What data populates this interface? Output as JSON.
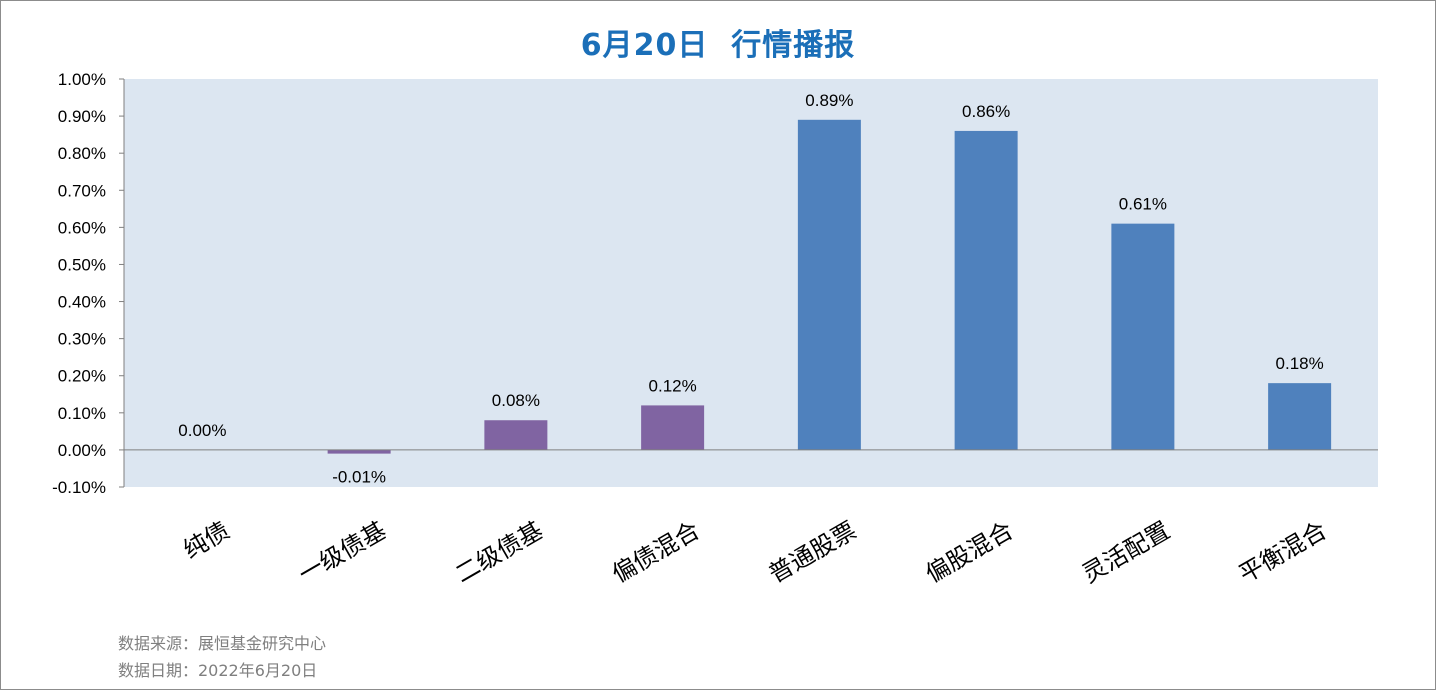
{
  "chart_data": {
    "type": "bar",
    "title": "6月20日  行情播报",
    "categories": [
      "纯债",
      "一级债基",
      "二级债基",
      "偏债混合",
      "普通股票",
      "偏股混合",
      "灵活配置",
      "平衡混合"
    ],
    "values": [
      0.0,
      -0.01,
      0.08,
      0.12,
      0.89,
      0.86,
      0.61,
      0.18
    ],
    "data_labels": [
      "0.00%",
      "-0.01%",
      "0.08%",
      "0.12%",
      "0.89%",
      "0.86%",
      "0.61%",
      "0.18%"
    ],
    "bar_colors": [
      "#8064a2",
      "#8064a2",
      "#8064a2",
      "#8064a2",
      "#4f81bd",
      "#4f81bd",
      "#4f81bd",
      "#4f81bd"
    ],
    "ylim": [
      -0.1,
      1.0
    ],
    "yticks": [
      1.0,
      0.9,
      0.8,
      0.7,
      0.6,
      0.5,
      0.4,
      0.3,
      0.2,
      0.1,
      0.0,
      -0.1
    ],
    "ytick_labels": [
      "1.00%",
      "0.90%",
      "0.80%",
      "0.70%",
      "0.60%",
      "0.50%",
      "0.40%",
      "0.30%",
      "0.20%",
      "0.10%",
      "0.00%",
      "-0.10%"
    ],
    "xlabel": "",
    "ylabel": "",
    "grid": false,
    "plot_background": "#dce6f1"
  },
  "notes": {
    "source": "数据来源：展恒基金研究中心",
    "date": "数据日期：2022年6月20日"
  }
}
